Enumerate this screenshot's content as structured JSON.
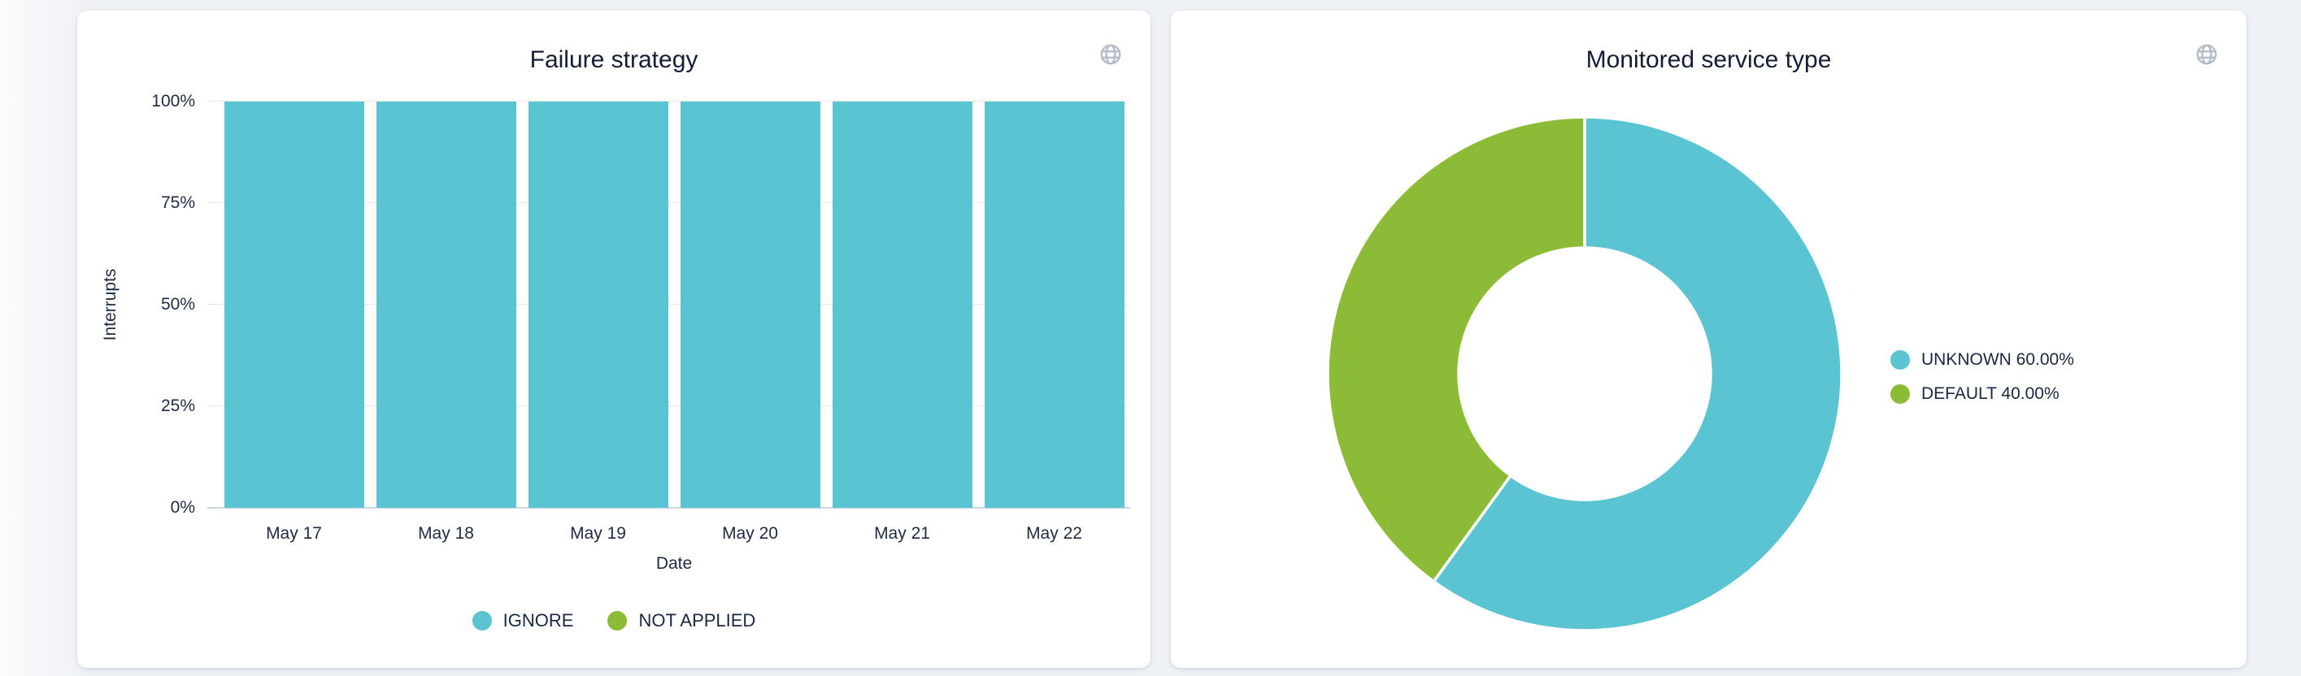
{
  "page": {
    "background": "#eef1f5",
    "card_background": "#ffffff"
  },
  "cards": [
    {
      "header_icon": "globe-icon"
    },
    {
      "header_icon": "globe-icon"
    }
  ],
  "colors": {
    "teal": "#5bc4d2",
    "green": "#8cbb35",
    "title_text": "#141d33",
    "axis_text": "#1f2a44",
    "grid": "#e8e8e8",
    "axis_line": "#ccd6e2",
    "icon": "#b4bbc7"
  },
  "chart_data": [
    {
      "type": "bar",
      "title": "Failure strategy",
      "categories": [
        "May 17",
        "May 18",
        "May 19",
        "May 20",
        "May 21",
        "May 22"
      ],
      "series": [
        {
          "name": "IGNORE",
          "color": "#5bc4d2",
          "values": [
            100,
            100,
            100,
            100,
            100,
            100
          ]
        },
        {
          "name": "NOT APPLIED",
          "color": "#8cbb35",
          "values": [
            0,
            0,
            0,
            0,
            0,
            0
          ]
        }
      ],
      "xlabel": "Date",
      "ylabel": "Interrupts",
      "ylim": [
        0,
        100
      ],
      "yticks": [
        {
          "label": "0%",
          "value": 0
        },
        {
          "label": "25%",
          "value": 25
        },
        {
          "label": "50%",
          "value": 50
        },
        {
          "label": "75%",
          "value": 75
        },
        {
          "label": "100%",
          "value": 100
        }
      ],
      "grid": true,
      "stacked_to_percent": true,
      "legend_position": "bottom"
    },
    {
      "type": "pie",
      "donut": true,
      "title": "Monitored service type",
      "start_angle_deg": 0,
      "slices": [
        {
          "label": "UNKNOWN",
          "value": 60,
          "display": "UNKNOWN 60.00%",
          "color": "#5bc4d2"
        },
        {
          "label": "DEFAULT",
          "value": 40,
          "display": "DEFAULT 40.00%",
          "color": "#8cbb35"
        }
      ],
      "legend_position": "right"
    }
  ]
}
